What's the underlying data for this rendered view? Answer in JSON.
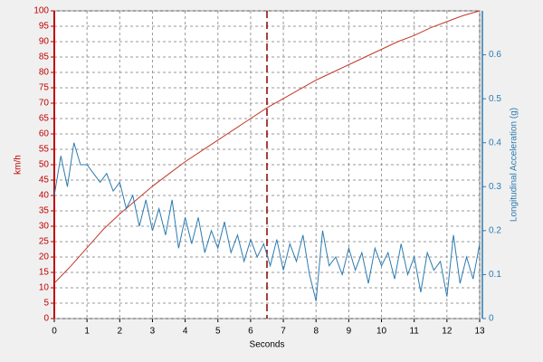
{
  "chart_data": {
    "type": "line",
    "xlabel": "Seconds",
    "ylabel": "km/h",
    "y2label": "Longitudinal Acceleration (g)",
    "xlim": [
      0,
      13
    ],
    "xticks": [
      0,
      1,
      2,
      3,
      4,
      5,
      6,
      7,
      8,
      9,
      10,
      11,
      12,
      13
    ],
    "ylim": [
      0,
      100
    ],
    "yticks": [
      0,
      5,
      10,
      15,
      20,
      25,
      30,
      35,
      40,
      45,
      50,
      55,
      60,
      65,
      70,
      75,
      80,
      85,
      90,
      95,
      100
    ],
    "y2lim": [
      0,
      0.7
    ],
    "y2ticks": [
      0,
      0.1,
      0.2,
      0.3,
      0.4,
      0.5,
      0.6
    ],
    "grid": true,
    "vline": 6.5,
    "vline_color": "#8b0000",
    "series": [
      {
        "name": "km/h",
        "color": "#c0392b",
        "axis": "y",
        "x": [
          0,
          0.5,
          1,
          1.5,
          2,
          2.5,
          3,
          3.5,
          4,
          4.5,
          5,
          5.5,
          6,
          6.5,
          7,
          7.5,
          8,
          8.5,
          9,
          9.5,
          10,
          10.5,
          11,
          11.5,
          12,
          12.5,
          13
        ],
        "values": [
          11.5,
          17,
          23,
          29,
          34,
          38.5,
          43,
          47,
          51,
          54.5,
          58,
          61.5,
          65,
          68.5,
          71.5,
          74.5,
          77.5,
          80,
          82.5,
          85,
          87.5,
          90,
          92,
          94.5,
          96.5,
          98.5,
          100
        ]
      },
      {
        "name": "Longitudinal Acceleration (g)",
        "color": "#2b7bb0",
        "axis": "y2",
        "x": [
          0,
          0.2,
          0.4,
          0.6,
          0.8,
          1,
          1.2,
          1.4,
          1.6,
          1.8,
          2,
          2.2,
          2.4,
          2.6,
          2.8,
          3,
          3.2,
          3.4,
          3.6,
          3.8,
          4,
          4.2,
          4.4,
          4.6,
          4.8,
          5,
          5.2,
          5.4,
          5.6,
          5.8,
          6,
          6.2,
          6.4,
          6.6,
          6.8,
          7,
          7.2,
          7.4,
          7.6,
          7.8,
          8,
          8.2,
          8.4,
          8.6,
          8.8,
          9,
          9.2,
          9.4,
          9.6,
          9.8,
          10,
          10.2,
          10.4,
          10.6,
          10.8,
          11,
          11.2,
          11.4,
          11.6,
          11.8,
          12,
          12.2,
          12.4,
          12.6,
          12.8,
          13
        ],
        "values": [
          0.28,
          0.37,
          0.3,
          0.4,
          0.35,
          0.35,
          0.33,
          0.31,
          0.33,
          0.29,
          0.31,
          0.25,
          0.28,
          0.21,
          0.27,
          0.2,
          0.25,
          0.19,
          0.27,
          0.16,
          0.23,
          0.17,
          0.23,
          0.15,
          0.2,
          0.16,
          0.22,
          0.15,
          0.19,
          0.13,
          0.18,
          0.14,
          0.17,
          0.12,
          0.18,
          0.11,
          0.17,
          0.13,
          0.19,
          0.1,
          0.04,
          0.2,
          0.12,
          0.14,
          0.1,
          0.16,
          0.11,
          0.15,
          0.08,
          0.16,
          0.12,
          0.15,
          0.09,
          0.17,
          0.1,
          0.14,
          0.06,
          0.15,
          0.11,
          0.13,
          0.05,
          0.19,
          0.08,
          0.14,
          0.09,
          0.17
        ]
      }
    ]
  }
}
